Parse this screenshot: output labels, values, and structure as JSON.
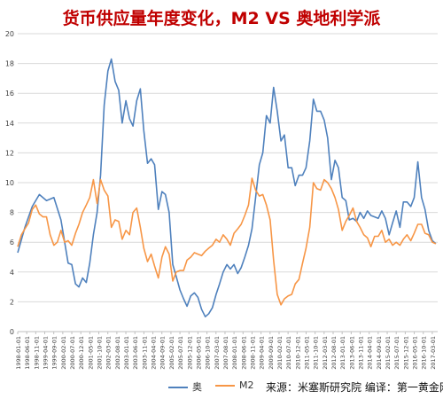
{
  "chart_data": {
    "type": "line",
    "title": "货币供应量年度变化，M2 VS 奥地利学派",
    "xlabel": "",
    "ylabel": "",
    "ylim": [
      0,
      20
    ],
    "yticks": [
      "0",
      "2",
      "4",
      "6",
      "8",
      "10",
      "12",
      "14",
      "16",
      "18",
      "20"
    ],
    "grid": true,
    "legend_position": "bottom",
    "x_tick_labels": [
      "1998-01-01",
      "1998-06-01",
      "1998-11-01",
      "1999-04-01",
      "1999-09-01",
      "2000-02-01",
      "2000-07-01",
      "2000-12-01",
      "2001-05-01",
      "2001-10-01",
      "2002-03-01",
      "2002-08-01",
      "2003-01-01",
      "2003-06-01",
      "2003-11-01",
      "2004-04-01",
      "2004-09-01",
      "2005-02-01",
      "2005-07-01",
      "2005-12-01",
      "2006-05-01",
      "2006-10-01",
      "2007-03-01",
      "2007-08-01",
      "2008-01-01",
      "2008-06-01",
      "2008-11-01",
      "2009-04-01",
      "2009-09-01",
      "2010-02-01",
      "2010-07-01",
      "2010-12-01",
      "2011-05-01",
      "2011-10-01",
      "2012-03-01",
      "2012-08-01",
      "2013-01-01",
      "2013-06-01",
      "2013-11-01",
      "2014-04-01",
      "2014-09-01",
      "2015-02-01",
      "2015-07-01",
      "2015-12-01",
      "2016-05-01",
      "2016-10-01",
      "2017-03-01"
    ],
    "series": [
      {
        "name": "奥",
        "color": "#4f81bd",
        "points": [
          [
            1998.0,
            5.3
          ],
          [
            1998.33,
            7.0
          ],
          [
            1998.67,
            8.4
          ],
          [
            1999.0,
            9.2
          ],
          [
            1999.33,
            8.8
          ],
          [
            1999.67,
            9.0
          ],
          [
            2000.0,
            7.5
          ],
          [
            2000.33,
            4.6
          ],
          [
            2000.5,
            4.5
          ],
          [
            2000.67,
            3.2
          ],
          [
            2000.83,
            3.0
          ],
          [
            2001.0,
            3.6
          ],
          [
            2001.17,
            3.3
          ],
          [
            2001.33,
            4.6
          ],
          [
            2001.5,
            6.5
          ],
          [
            2001.67,
            8.0
          ],
          [
            2001.83,
            10.5
          ],
          [
            2002.0,
            15.2
          ],
          [
            2002.17,
            17.5
          ],
          [
            2002.33,
            18.3
          ],
          [
            2002.5,
            16.8
          ],
          [
            2002.67,
            16.2
          ],
          [
            2002.83,
            14.0
          ],
          [
            2003.0,
            15.5
          ],
          [
            2003.17,
            14.3
          ],
          [
            2003.33,
            13.8
          ],
          [
            2003.5,
            15.5
          ],
          [
            2003.67,
            16.3
          ],
          [
            2003.83,
            13.5
          ],
          [
            2004.0,
            11.3
          ],
          [
            2004.17,
            11.6
          ],
          [
            2004.33,
            11.2
          ],
          [
            2004.5,
            8.2
          ],
          [
            2004.67,
            9.4
          ],
          [
            2004.83,
            9.2
          ],
          [
            2005.0,
            8.0
          ],
          [
            2005.17,
            4.5
          ],
          [
            2005.33,
            3.7
          ],
          [
            2005.5,
            2.8
          ],
          [
            2005.67,
            2.2
          ],
          [
            2005.83,
            1.7
          ],
          [
            2006.0,
            2.4
          ],
          [
            2006.17,
            2.6
          ],
          [
            2006.33,
            2.3
          ],
          [
            2006.5,
            1.5
          ],
          [
            2006.67,
            1.0
          ],
          [
            2006.83,
            1.2
          ],
          [
            2007.0,
            1.6
          ],
          [
            2007.17,
            2.5
          ],
          [
            2007.33,
            3.2
          ],
          [
            2007.5,
            4.0
          ],
          [
            2007.67,
            4.5
          ],
          [
            2007.83,
            4.2
          ],
          [
            2008.0,
            4.5
          ],
          [
            2008.17,
            3.9
          ],
          [
            2008.33,
            4.3
          ],
          [
            2008.5,
            5.0
          ],
          [
            2008.67,
            5.8
          ],
          [
            2008.83,
            6.9
          ],
          [
            2009.0,
            9.0
          ],
          [
            2009.17,
            11.2
          ],
          [
            2009.33,
            12.0
          ],
          [
            2009.5,
            14.5
          ],
          [
            2009.67,
            14.0
          ],
          [
            2009.83,
            16.4
          ],
          [
            2010.0,
            14.8
          ],
          [
            2010.17,
            12.8
          ],
          [
            2010.33,
            13.2
          ],
          [
            2010.5,
            11.0
          ],
          [
            2010.67,
            11.0
          ],
          [
            2010.83,
            9.8
          ],
          [
            2011.0,
            10.5
          ],
          [
            2011.17,
            10.5
          ],
          [
            2011.33,
            11.0
          ],
          [
            2011.5,
            12.8
          ],
          [
            2011.67,
            15.6
          ],
          [
            2011.83,
            14.8
          ],
          [
            2012.0,
            14.8
          ],
          [
            2012.17,
            14.2
          ],
          [
            2012.33,
            13.0
          ],
          [
            2012.5,
            10.2
          ],
          [
            2012.67,
            11.5
          ],
          [
            2012.83,
            11.0
          ],
          [
            2013.0,
            9.0
          ],
          [
            2013.17,
            8.8
          ],
          [
            2013.33,
            7.5
          ],
          [
            2013.5,
            7.6
          ],
          [
            2013.67,
            7.4
          ],
          [
            2013.83,
            8.0
          ],
          [
            2014.0,
            7.6
          ],
          [
            2014.17,
            8.1
          ],
          [
            2014.33,
            7.8
          ],
          [
            2014.5,
            7.7
          ],
          [
            2014.67,
            7.6
          ],
          [
            2014.83,
            8.1
          ],
          [
            2015.0,
            7.6
          ],
          [
            2015.17,
            6.5
          ],
          [
            2015.33,
            7.3
          ],
          [
            2015.5,
            8.1
          ],
          [
            2015.67,
            7.0
          ],
          [
            2015.83,
            8.7
          ],
          [
            2016.0,
            8.7
          ],
          [
            2016.17,
            8.4
          ],
          [
            2016.33,
            9.0
          ],
          [
            2016.5,
            11.4
          ],
          [
            2016.67,
            9.0
          ],
          [
            2016.83,
            8.2
          ],
          [
            2017.0,
            6.8
          ],
          [
            2017.17,
            6.1
          ],
          [
            2017.33,
            5.9
          ]
        ]
      },
      {
        "name": "M2",
        "color": "#f79646",
        "points": [
          [
            1998.0,
            5.7
          ],
          [
            1998.17,
            6.5
          ],
          [
            1998.33,
            6.9
          ],
          [
            1998.5,
            7.3
          ],
          [
            1998.67,
            8.2
          ],
          [
            1998.83,
            8.5
          ],
          [
            1999.0,
            7.9
          ],
          [
            1999.17,
            7.7
          ],
          [
            1999.33,
            7.7
          ],
          [
            1999.5,
            6.5
          ],
          [
            1999.67,
            5.8
          ],
          [
            1999.83,
            6.0
          ],
          [
            2000.0,
            6.8
          ],
          [
            2000.17,
            6.0
          ],
          [
            2000.33,
            6.1
          ],
          [
            2000.5,
            5.8
          ],
          [
            2000.67,
            6.6
          ],
          [
            2000.83,
            7.2
          ],
          [
            2001.0,
            8.0
          ],
          [
            2001.17,
            8.5
          ],
          [
            2001.33,
            9.0
          ],
          [
            2001.5,
            10.2
          ],
          [
            2001.67,
            8.6
          ],
          [
            2001.83,
            10.2
          ],
          [
            2002.0,
            9.5
          ],
          [
            2002.17,
            9.1
          ],
          [
            2002.33,
            7.0
          ],
          [
            2002.5,
            7.5
          ],
          [
            2002.67,
            7.4
          ],
          [
            2002.83,
            6.2
          ],
          [
            2003.0,
            6.8
          ],
          [
            2003.17,
            6.5
          ],
          [
            2003.33,
            8.0
          ],
          [
            2003.5,
            8.3
          ],
          [
            2003.67,
            7.0
          ],
          [
            2003.83,
            5.6
          ],
          [
            2004.0,
            4.7
          ],
          [
            2004.17,
            5.2
          ],
          [
            2004.33,
            4.4
          ],
          [
            2004.5,
            3.6
          ],
          [
            2004.67,
            5.0
          ],
          [
            2004.83,
            5.7
          ],
          [
            2005.0,
            5.2
          ],
          [
            2005.17,
            3.4
          ],
          [
            2005.33,
            4.0
          ],
          [
            2005.5,
            4.1
          ],
          [
            2005.67,
            4.1
          ],
          [
            2005.83,
            4.8
          ],
          [
            2006.0,
            5.0
          ],
          [
            2006.17,
            5.3
          ],
          [
            2006.33,
            5.2
          ],
          [
            2006.5,
            5.1
          ],
          [
            2006.67,
            5.4
          ],
          [
            2006.83,
            5.6
          ],
          [
            2007.0,
            5.8
          ],
          [
            2007.17,
            6.2
          ],
          [
            2007.33,
            6.0
          ],
          [
            2007.5,
            6.5
          ],
          [
            2007.67,
            6.2
          ],
          [
            2007.83,
            5.8
          ],
          [
            2008.0,
            6.6
          ],
          [
            2008.17,
            6.9
          ],
          [
            2008.33,
            7.2
          ],
          [
            2008.5,
            7.8
          ],
          [
            2008.67,
            8.5
          ],
          [
            2008.83,
            10.3
          ],
          [
            2009.0,
            9.5
          ],
          [
            2009.17,
            9.1
          ],
          [
            2009.33,
            9.2
          ],
          [
            2009.5,
            8.5
          ],
          [
            2009.67,
            7.5
          ],
          [
            2009.83,
            4.8
          ],
          [
            2010.0,
            2.5
          ],
          [
            2010.17,
            1.8
          ],
          [
            2010.33,
            2.2
          ],
          [
            2010.5,
            2.4
          ],
          [
            2010.67,
            2.5
          ],
          [
            2010.83,
            3.2
          ],
          [
            2011.0,
            3.5
          ],
          [
            2011.17,
            4.6
          ],
          [
            2011.33,
            5.6
          ],
          [
            2011.5,
            7.0
          ],
          [
            2011.67,
            10.0
          ],
          [
            2011.83,
            9.6
          ],
          [
            2012.0,
            9.5
          ],
          [
            2012.17,
            10.2
          ],
          [
            2012.33,
            10.0
          ],
          [
            2012.5,
            9.6
          ],
          [
            2012.67,
            9.0
          ],
          [
            2012.83,
            8.2
          ],
          [
            2013.0,
            6.8
          ],
          [
            2013.17,
            7.4
          ],
          [
            2013.33,
            7.8
          ],
          [
            2013.5,
            8.3
          ],
          [
            2013.67,
            7.4
          ],
          [
            2013.83,
            7.0
          ],
          [
            2014.0,
            6.5
          ],
          [
            2014.17,
            6.3
          ],
          [
            2014.33,
            5.7
          ],
          [
            2014.5,
            6.4
          ],
          [
            2014.67,
            6.4
          ],
          [
            2014.83,
            6.8
          ],
          [
            2015.0,
            6.0
          ],
          [
            2015.17,
            6.2
          ],
          [
            2015.33,
            5.8
          ],
          [
            2015.5,
            6.0
          ],
          [
            2015.67,
            5.8
          ],
          [
            2015.83,
            6.2
          ],
          [
            2016.0,
            6.5
          ],
          [
            2016.17,
            6.1
          ],
          [
            2016.33,
            6.6
          ],
          [
            2016.5,
            7.2
          ],
          [
            2016.67,
            7.2
          ],
          [
            2016.83,
            6.6
          ],
          [
            2017.0,
            6.5
          ],
          [
            2017.17,
            6.0
          ],
          [
            2017.33,
            5.9
          ]
        ]
      }
    ],
    "source_note": "来源：米塞斯研究院   编译：第一黄金网"
  }
}
